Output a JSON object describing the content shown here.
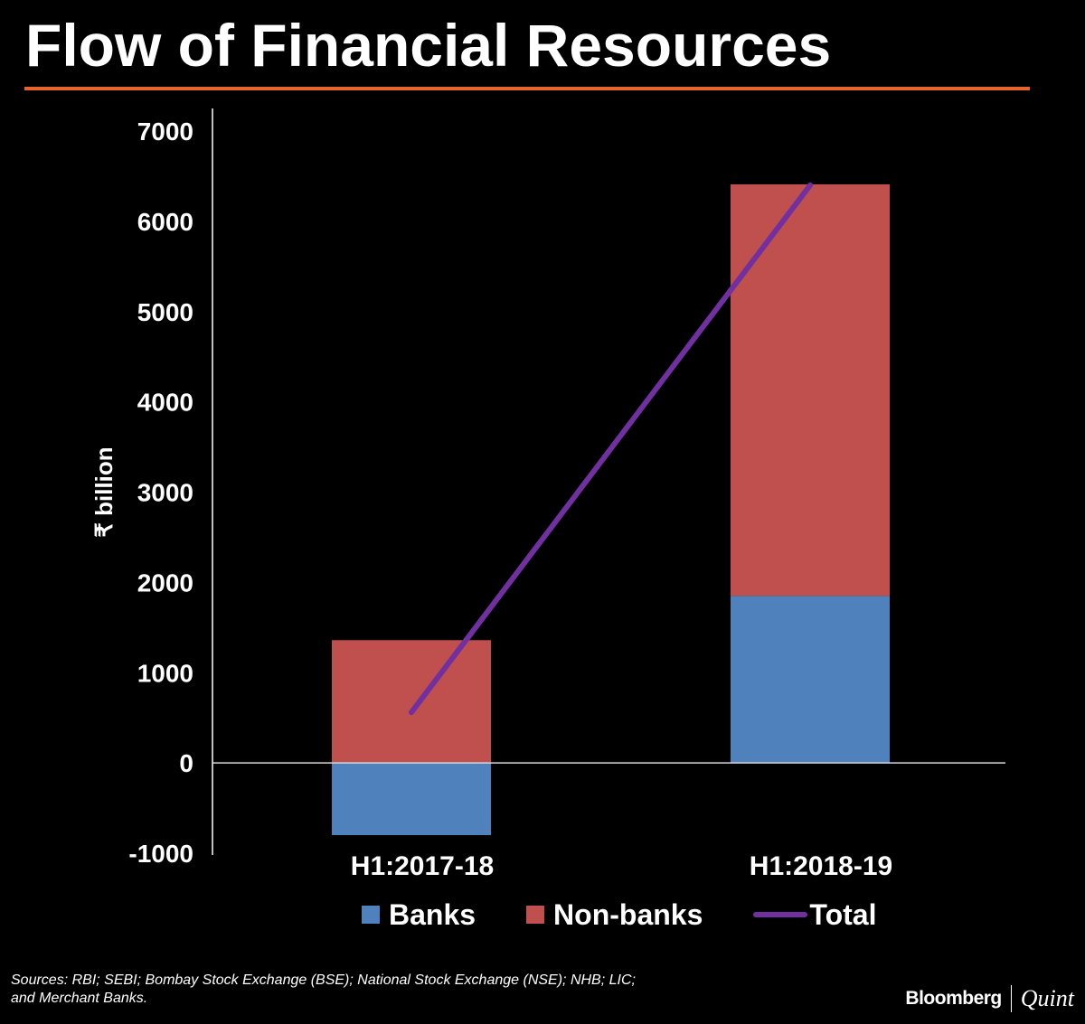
{
  "header": {
    "title": "Flow of Financial Resources",
    "rule_color": "#e8632b"
  },
  "chart_data": {
    "type": "bar",
    "stacked": true,
    "categories": [
      "H1:2017-18",
      "H1:2018-19"
    ],
    "series": [
      {
        "name": "Banks",
        "type": "bar",
        "color": "#4f81bd",
        "values": [
          -800,
          1850
        ]
      },
      {
        "name": "Non-banks",
        "type": "bar",
        "color": "#c0504d",
        "values": [
          1360,
          4560
        ]
      },
      {
        "name": "Total",
        "type": "line",
        "color": "#7030a0",
        "values": [
          560,
          6400
        ]
      }
    ],
    "title": "Flow of Financial Resources",
    "xlabel": "",
    "ylabel": "₹ billion",
    "ylim": [
      -1000,
      7000
    ],
    "yticks": [
      -1000,
      0,
      1000,
      2000,
      3000,
      4000,
      5000,
      6000,
      7000
    ],
    "grid": false,
    "legend_position": "bottom"
  },
  "footer": {
    "sources": "Sources: RBI; SEBI; Bombay Stock Exchange (BSE); National Stock Exchange (NSE); NHB; LIC; and Merchant Banks.",
    "brand_left": "Bloomberg",
    "brand_right": "Quint"
  }
}
